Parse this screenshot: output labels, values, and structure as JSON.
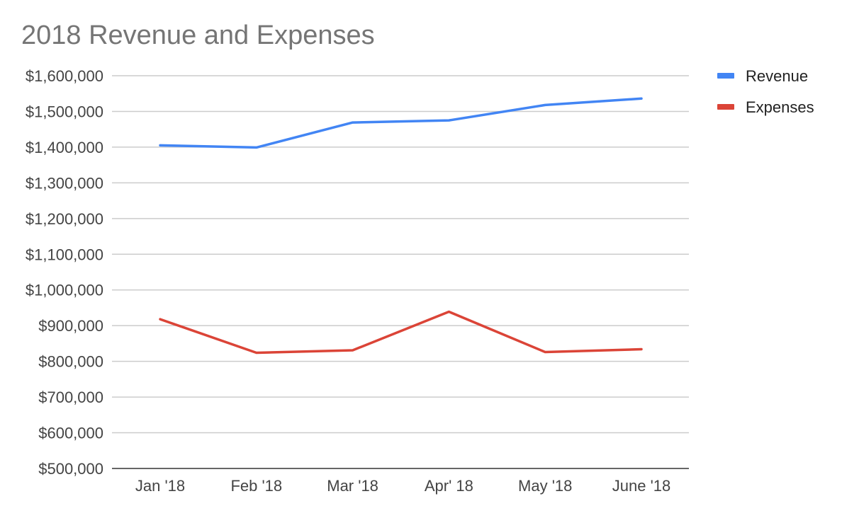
{
  "chart_data": {
    "type": "line",
    "title": "2018 Revenue and Expenses",
    "xlabel": "",
    "ylabel": "",
    "categories": [
      "Jan '18",
      "Feb '18",
      "Mar '18",
      "Apr' 18",
      "May '18",
      "June '18"
    ],
    "ylim": [
      500000,
      1600000
    ],
    "yticks": [
      500000,
      600000,
      700000,
      800000,
      900000,
      1000000,
      1100000,
      1200000,
      1300000,
      1400000,
      1500000,
      1600000
    ],
    "ytick_labels": [
      "$500,000",
      "$600,000",
      "$700,000",
      "$800,000",
      "$900,000",
      "$1,000,000",
      "$1,100,000",
      "$1,200,000",
      "$1,300,000",
      "$1,400,000",
      "$1,500,000",
      "$1,600,000"
    ],
    "grid": true,
    "legend": "right",
    "series": [
      {
        "name": "Revenue",
        "color": "#4285f4",
        "values": [
          1405000,
          1399000,
          1469000,
          1475000,
          1518000,
          1536000
        ]
      },
      {
        "name": "Expenses",
        "color": "#db4437",
        "values": [
          918000,
          824000,
          831000,
          939000,
          826000,
          834000
        ]
      }
    ]
  }
}
